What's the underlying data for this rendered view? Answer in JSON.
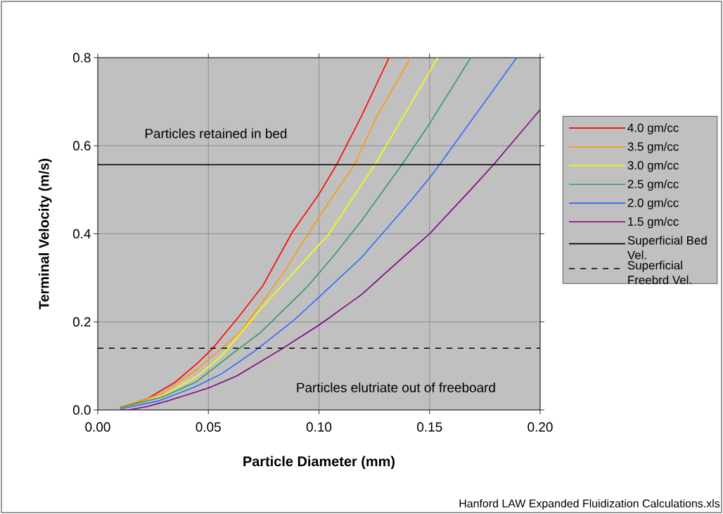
{
  "chart_data": {
    "type": "line",
    "xlabel": "Particle Diameter (mm)",
    "ylabel": "Terminal Velocity (m/s)",
    "xlim": [
      0,
      0.2
    ],
    "ylim": [
      0,
      0.8
    ],
    "xticks": [
      {
        "value": 0,
        "label": "0.00"
      },
      {
        "value": 0.05,
        "label": "0.05"
      },
      {
        "value": 0.1,
        "label": "0.10"
      },
      {
        "value": 0.15,
        "label": "0.15"
      },
      {
        "value": 0.2,
        "label": "0.20"
      }
    ],
    "yticks": [
      {
        "value": 0,
        "label": "0.0"
      },
      {
        "value": 0.2,
        "label": "0.2"
      },
      {
        "value": 0.4,
        "label": "0.4"
      },
      {
        "value": 0.6,
        "label": "0.6"
      },
      {
        "value": 0.8,
        "label": "0.8"
      }
    ],
    "grid": true,
    "legend": "right",
    "series": [
      {
        "name": "4.0 gm/cc",
        "color": "#ff0000",
        "x": [
          0.01,
          0.0226,
          0.035,
          0.045,
          0.052,
          0.063,
          0.0745,
          0.088,
          0.1,
          0.108,
          0.119,
          0.1317
        ],
        "values": [
          0.005,
          0.026,
          0.063,
          0.106,
          0.14,
          0.207,
          0.281,
          0.404,
          0.49,
          0.557,
          0.665,
          0.8
        ]
      },
      {
        "name": "3.5 gm/cc",
        "color": "#ff9900",
        "x": [
          0.01,
          0.029,
          0.045,
          0.056,
          0.065,
          0.0835,
          0.1,
          0.116,
          0.126,
          0.1415
        ],
        "values": [
          0.005,
          0.037,
          0.093,
          0.14,
          0.18,
          0.308,
          0.438,
          0.557,
          0.665,
          0.8
        ]
      },
      {
        "name": "3.0 gm/cc",
        "color": "#ffff00",
        "x": [
          0.01,
          0.029,
          0.045,
          0.0565,
          0.0607,
          0.0745,
          0.1004,
          0.104,
          0.1253,
          0.138,
          0.1537
        ],
        "values": [
          0.003,
          0.031,
          0.077,
          0.125,
          0.151,
          0.234,
          0.377,
          0.396,
          0.557,
          0.665,
          0.8
        ]
      },
      {
        "name": "2.5 gm/cc",
        "color": "#339966",
        "x": [
          0.01,
          0.029,
          0.0443,
          0.0607,
          0.0734,
          0.094,
          0.1004,
          0.1068,
          0.119,
          0.1375,
          0.15,
          0.1686
        ],
        "values": [
          0.005,
          0.029,
          0.063,
          0.127,
          0.175,
          0.276,
          0.313,
          0.351,
          0.428,
          0.557,
          0.65,
          0.8
        ]
      },
      {
        "name": "2.0 gm/cc",
        "color": "#3366ff",
        "x": [
          0.01,
          0.0279,
          0.0443,
          0.056,
          0.0713,
          0.0883,
          0.1004,
          0.119,
          0.1412,
          0.15,
          0.1545,
          0.1894
        ],
        "values": [
          0.002,
          0.021,
          0.053,
          0.082,
          0.135,
          0.202,
          0.258,
          0.345,
          0.473,
          0.527,
          0.557,
          0.8
        ]
      },
      {
        "name": "1.5 gm/cc",
        "color": "#800080",
        "x": [
          0.01,
          0.014,
          0.0226,
          0.032,
          0.0501,
          0.0628,
          0.083,
          0.1004,
          0.119,
          0.1412,
          0.15,
          0.1686,
          0.1789,
          0.2
        ],
        "values": [
          0.0,
          0.0,
          0.008,
          0.021,
          0.05,
          0.077,
          0.138,
          0.194,
          0.261,
          0.361,
          0.4,
          0.5,
          0.557,
          0.682
        ]
      },
      {
        "name": "Superficial Bed Vel.",
        "color": "#000000",
        "x": [
          0,
          0.2
        ],
        "values": [
          0.557,
          0.557
        ]
      },
      {
        "name": "Superficial Freebrd Vel.",
        "color": "#000000",
        "line_style": "dashed",
        "x": [
          0,
          0.2
        ],
        "values": [
          0.14,
          0.14
        ]
      }
    ],
    "annotations": [
      "Particles retained in bed",
      "Particles elutriate out of freeboard",
      "Hanford LAW Expanded Fluidization Calculations.xls"
    ]
  }
}
